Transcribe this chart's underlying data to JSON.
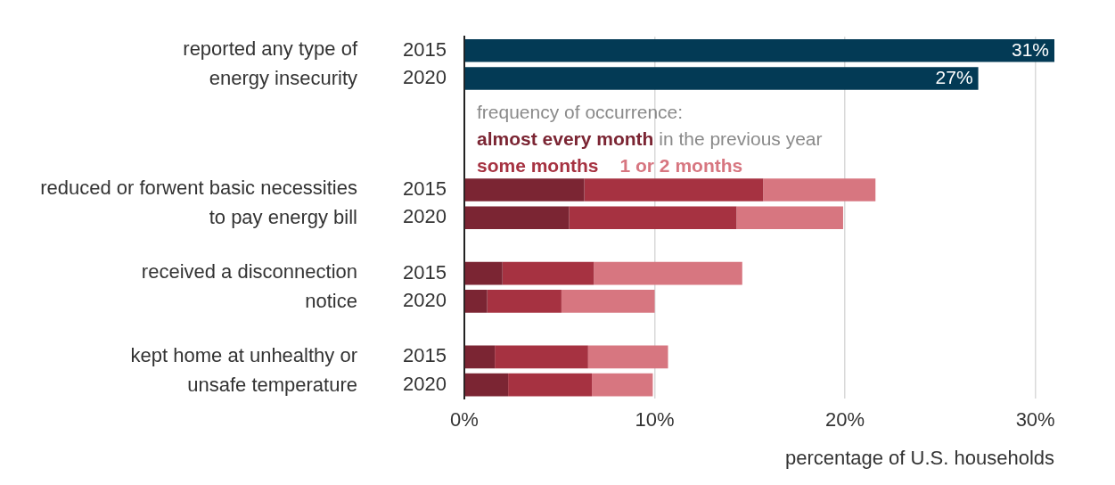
{
  "chart_data": {
    "type": "bar",
    "orientation": "horizontal",
    "stacked": true,
    "categories": [
      "2015",
      "2020",
      null,
      null,
      null,
      "2015",
      "2020",
      null,
      "2015",
      "2020",
      null,
      "2015",
      "2020"
    ],
    "series": [
      {
        "color": "#033a55",
        "values": [
          31,
          27,
          null,
          null,
          null,
          null,
          null,
          null,
          null,
          null,
          null,
          null,
          null
        ],
        "value_labels": [
          "31%",
          "27%",
          null,
          null,
          null,
          null,
          null,
          null,
          null,
          null,
          null,
          null,
          null
        ]
      },
      {
        "name": "almost every month",
        "color": "#7b2533",
        "values": [
          null,
          null,
          null,
          null,
          null,
          6.3,
          5.5,
          null,
          2.0,
          1.2,
          null,
          1.6,
          2.3
        ]
      },
      {
        "name": "some months",
        "color": "#a63241",
        "values": [
          null,
          null,
          null,
          null,
          null,
          9.4,
          8.8,
          null,
          4.8,
          3.9,
          null,
          4.9,
          4.4
        ]
      },
      {
        "name": "1 or 2 months",
        "color": "#d77680",
        "values": [
          null,
          null,
          null,
          null,
          null,
          5.9,
          5.6,
          null,
          7.8,
          4.9,
          null,
          4.2,
          3.2
        ]
      }
    ],
    "legend": "top left",
    "legend_title": "frequency of occurrence:",
    "annotations": [
      "reported any type of energy insecurity",
      "reduced or forwent basic necessities to pay energy bill",
      "received a disconnection notice",
      "kept home at unhealthy or unsafe temperature",
      "in the previous year"
    ],
    "xlim": [
      0,
      31
    ],
    "xticks": [
      {
        "value": 0,
        "label": "0%"
      },
      {
        "value": 10,
        "label": "10%"
      },
      {
        "value": 20,
        "label": "20%"
      },
      {
        "value": 30,
        "label": "30%"
      }
    ],
    "grid": "x",
    "xlabel": "percentage of U.S. households"
  }
}
